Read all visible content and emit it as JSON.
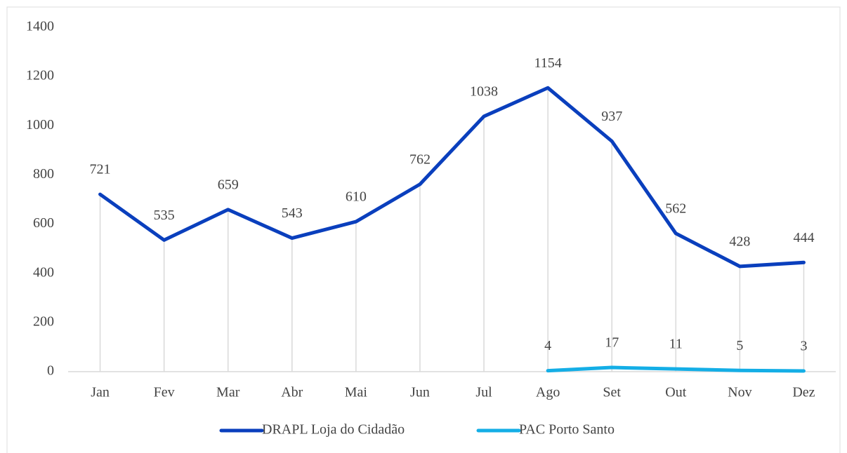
{
  "chart_data": {
    "type": "line",
    "categories": [
      "Jan",
      "Fev",
      "Mar",
      "Abr",
      "Mai",
      "Jun",
      "Jul",
      "Ago",
      "Set",
      "Out",
      "Nov",
      "Dez"
    ],
    "series": [
      {
        "name": "DRAPL Loja do Cidadão",
        "color": "#0a3fbd",
        "values": [
          721,
          535,
          659,
          543,
          610,
          762,
          1038,
          1154,
          937,
          562,
          428,
          444
        ]
      },
      {
        "name": "PAC Porto Santo",
        "color": "#14aee6",
        "values": [
          null,
          null,
          null,
          null,
          null,
          null,
          null,
          4,
          17,
          11,
          5,
          3
        ]
      }
    ],
    "ylim": [
      0,
      1400
    ],
    "yticks": [
      0,
      200,
      400,
      600,
      800,
      1000,
      1200,
      1400
    ],
    "legend": "bottom",
    "data_labels": true
  }
}
